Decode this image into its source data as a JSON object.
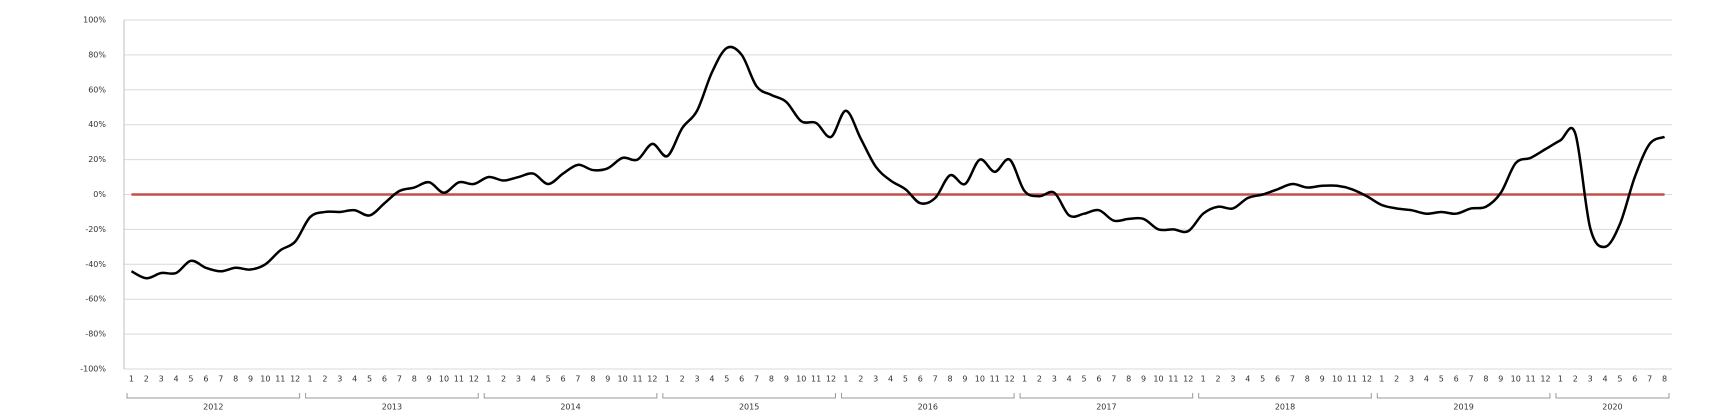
{
  "chart_data": {
    "type": "line",
    "categories": [
      "1",
      "2",
      "3",
      "4",
      "5",
      "6",
      "7",
      "8",
      "9",
      "10",
      "11",
      "12",
      "1",
      "2",
      "3",
      "4",
      "5",
      "6",
      "7",
      "8",
      "9",
      "10",
      "11",
      "12",
      "1",
      "2",
      "3",
      "4",
      "5",
      "6",
      "7",
      "8",
      "9",
      "10",
      "11",
      "12",
      "1",
      "2",
      "3",
      "4",
      "5",
      "6",
      "7",
      "8",
      "9",
      "10",
      "11",
      "12",
      "1",
      "2",
      "3",
      "4",
      "5",
      "6",
      "7",
      "8",
      "9",
      "10",
      "11",
      "12",
      "1",
      "2",
      "3",
      "4",
      "5",
      "6",
      "7",
      "8",
      "9",
      "10",
      "11",
      "12",
      "1",
      "2",
      "3",
      "4",
      "5",
      "6",
      "7",
      "8",
      "9",
      "10",
      "11",
      "12",
      "1",
      "2",
      "3",
      "4",
      "5",
      "6",
      "7",
      "8",
      "9",
      "10",
      "11",
      "12",
      "1",
      "2",
      "3",
      "4",
      "5",
      "6",
      "7",
      "8"
    ],
    "x_groups": [
      "2012",
      "2013",
      "2014",
      "2015",
      "2016",
      "2017",
      "2018",
      "2019",
      "2020"
    ],
    "series": [
      {
        "color": "#000000",
        "values": [
          -44,
          -48,
          -45,
          -45,
          -38,
          -42,
          -44,
          -42,
          -43,
          -40,
          -32,
          -27,
          -13,
          -10,
          -10,
          -9,
          -12,
          -5,
          2,
          4,
          7,
          1,
          7,
          6,
          10,
          8,
          10,
          12,
          6,
          12,
          17,
          14,
          15,
          21,
          20,
          29,
          22,
          38,
          48,
          70,
          84,
          80,
          62,
          57,
          53,
          42,
          41,
          33,
          48,
          32,
          16,
          8,
          3,
          -5,
          -2,
          11,
          6,
          20,
          13,
          20,
          2,
          -1,
          1,
          -12,
          -11,
          -9,
          -15,
          -14,
          -14,
          -20,
          -20,
          -21,
          -11,
          -7,
          -8,
          -2,
          0,
          3,
          6,
          4,
          5,
          5,
          3,
          -1,
          -6,
          -8,
          -9,
          -11,
          -10,
          -11,
          -8,
          -7,
          1,
          18,
          21,
          26,
          31,
          35,
          -19,
          -30,
          -17,
          10,
          29,
          33
        ]
      }
    ],
    "reference_line": {
      "value": 0,
      "color": "#c0504d"
    },
    "ylim": [
      -100,
      100
    ],
    "yticks": [
      {
        "value": -100,
        "label": "-100%"
      },
      {
        "value": -80,
        "label": "-80%"
      },
      {
        "value": -60,
        "label": "-60%"
      },
      {
        "value": -40,
        "label": "-40%"
      },
      {
        "value": -20,
        "label": "-20%"
      },
      {
        "value": 0,
        "label": "0%"
      },
      {
        "value": 20,
        "label": "20%"
      },
      {
        "value": 40,
        "label": "40%"
      },
      {
        "value": 60,
        "label": "60%"
      },
      {
        "value": 80,
        "label": "80%"
      },
      {
        "value": 100,
        "label": "100%"
      }
    ],
    "grid": true
  }
}
